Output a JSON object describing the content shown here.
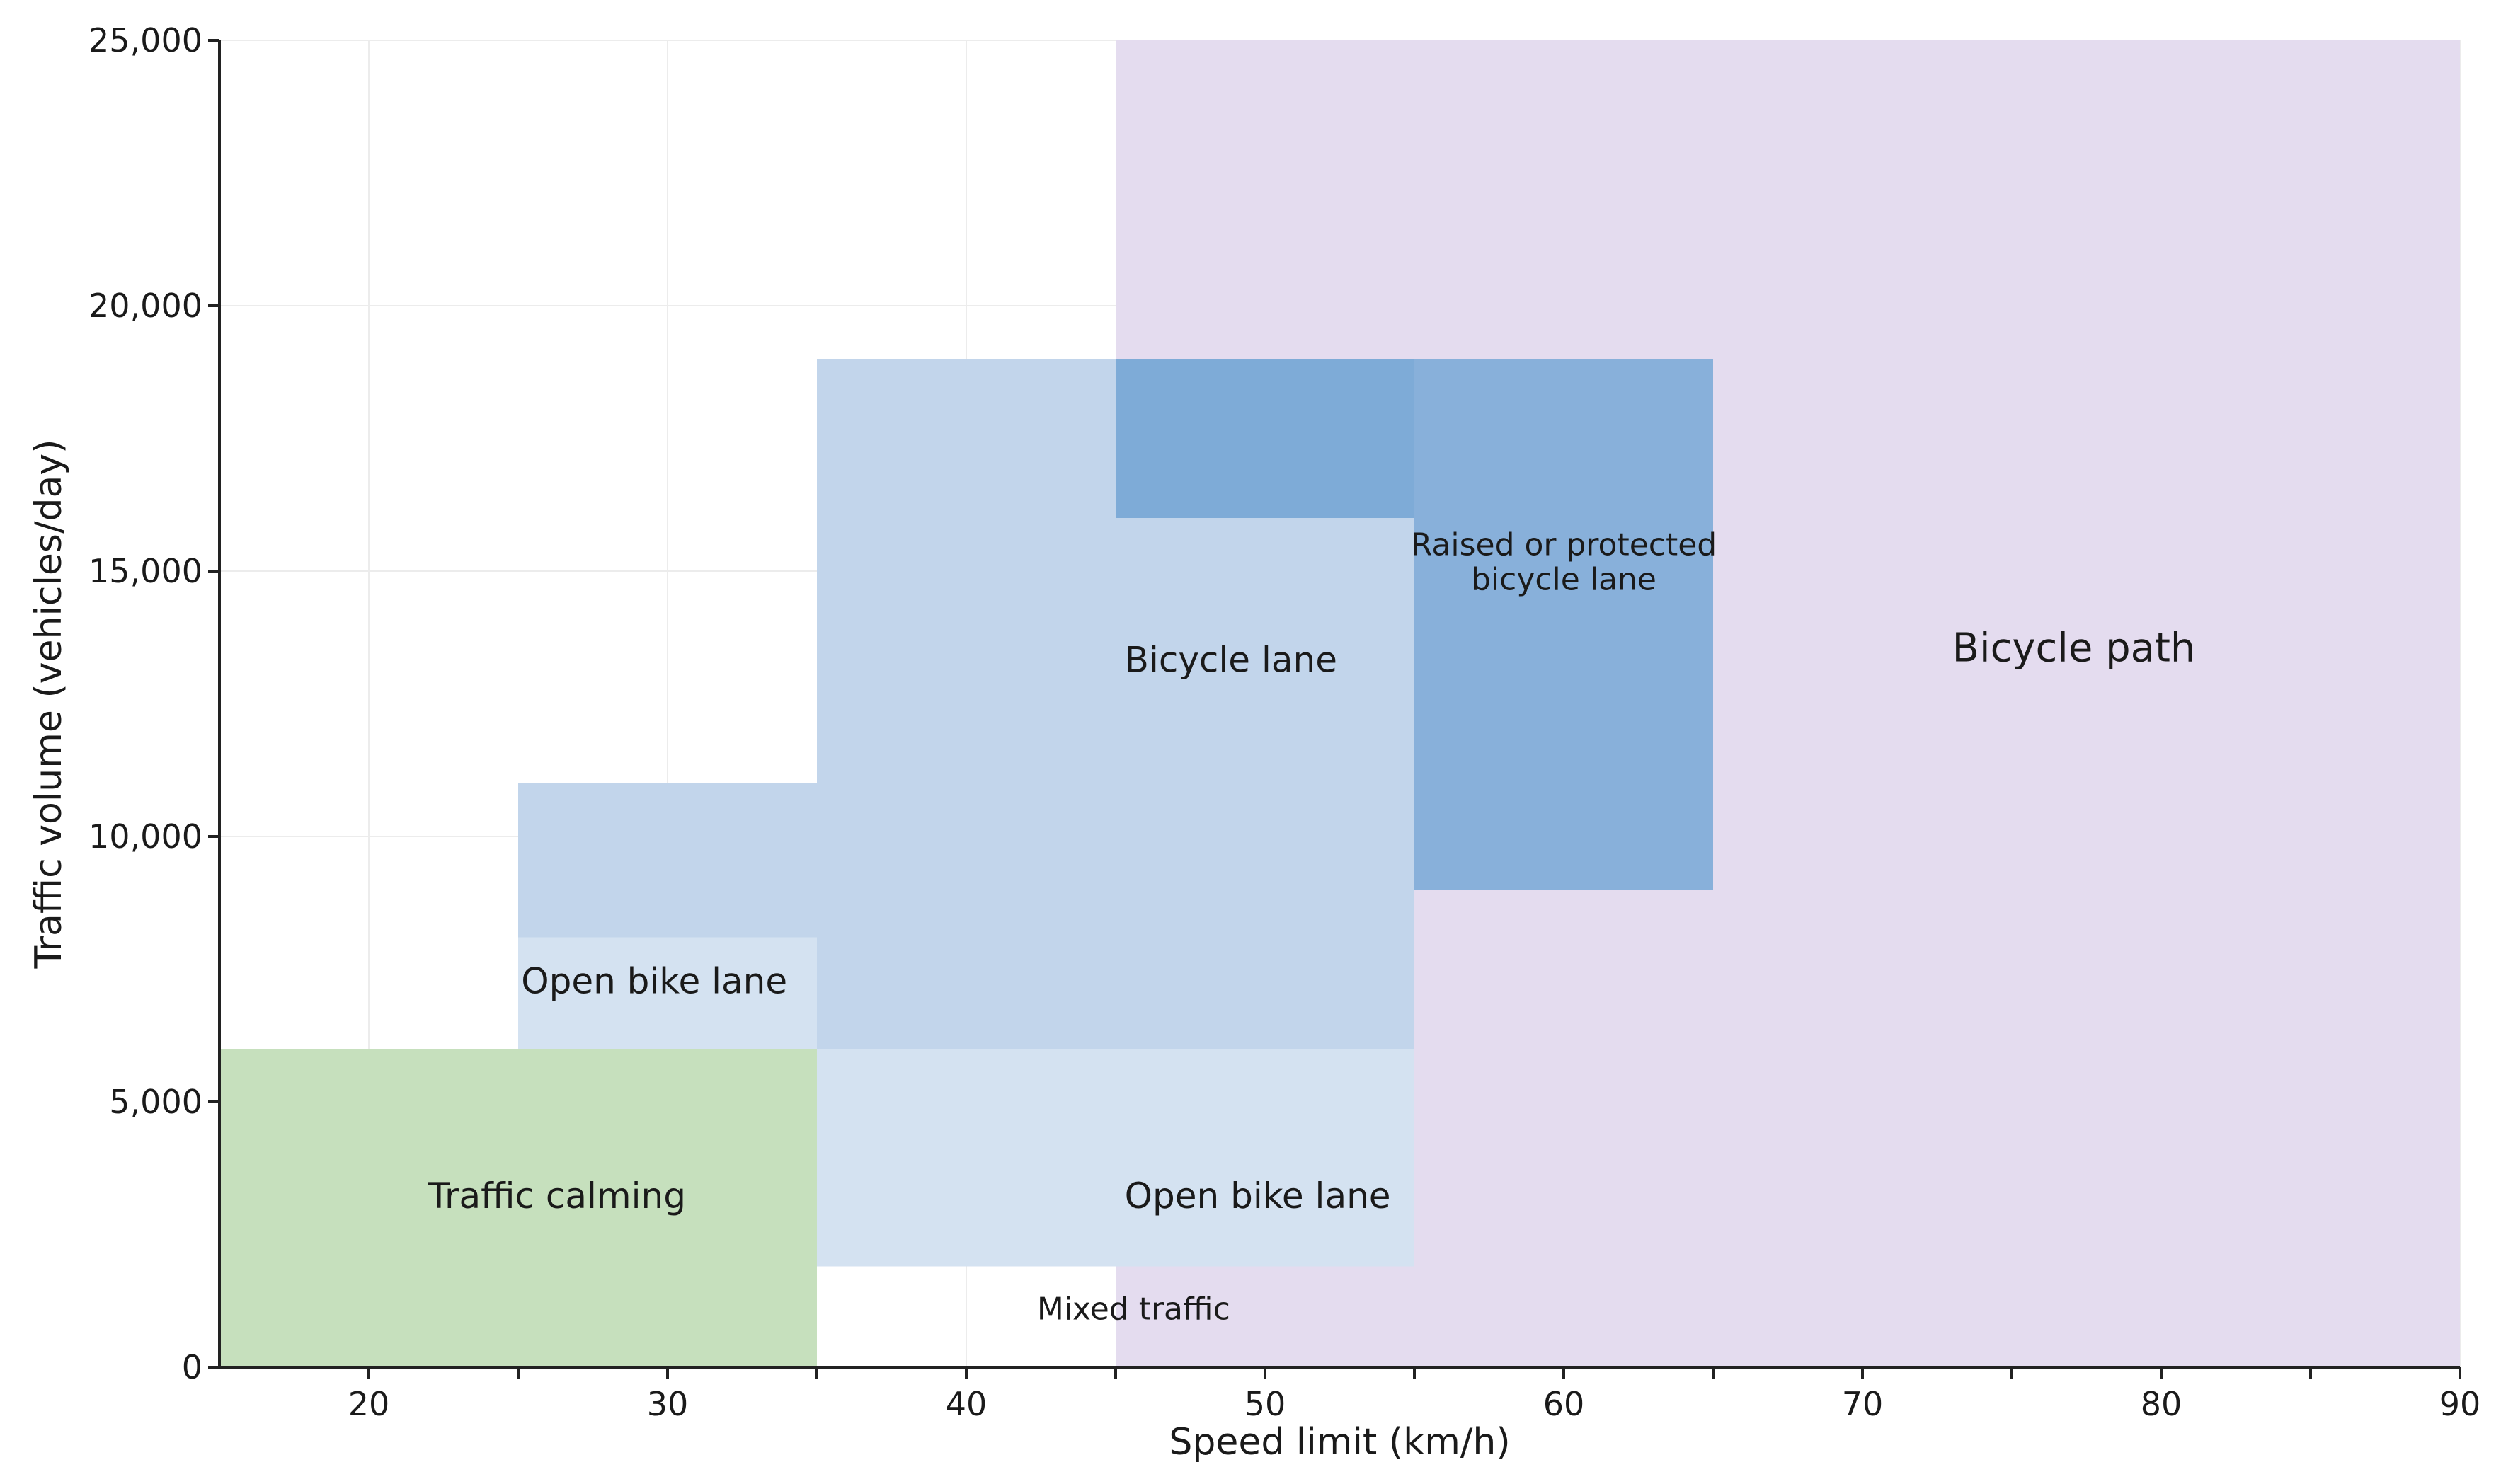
{
  "chart_data": {
    "type": "area",
    "title": "",
    "xlabel": "Speed limit (km/h)",
    "ylabel": "Traffic volume (vehicles/day)",
    "xlim": [
      15,
      90
    ],
    "ylim": [
      0,
      25000
    ],
    "x_major_ticks": [
      20,
      30,
      40,
      50,
      60,
      70,
      80,
      90
    ],
    "x_tick_labels": [
      "20",
      "30",
      "40",
      "50",
      "60",
      "70",
      "80",
      "90"
    ],
    "x_minor_ticks": [
      25,
      35,
      45,
      55,
      65,
      75,
      85
    ],
    "y_ticks": [
      0,
      5000,
      10000,
      15000,
      20000,
      25000
    ],
    "y_tick_labels": [
      "0",
      "5,000",
      "10,000",
      "15,000",
      "20,000",
      "25,000"
    ],
    "grid": true,
    "regions": [
      {
        "name": "Bicycle path",
        "x": [
          45,
          90
        ],
        "y": [
          0,
          25000
        ],
        "color": "#e4dcef"
      },
      {
        "name": "Bicycle path",
        "x": [
          65,
          90
        ],
        "y": [
          0,
          25000
        ],
        "color": "#e4dcef"
      },
      {
        "name": "Bicycle lane",
        "x": [
          35,
          55
        ],
        "y": [
          6000,
          19000
        ],
        "color": "#c2d5eb"
      },
      {
        "name": "Bicycle lane",
        "x": [
          25,
          35
        ],
        "y": [
          8100,
          11000
        ],
        "color": "#c2d5eb"
      },
      {
        "name": "Open bike lane",
        "x": [
          25,
          35
        ],
        "y": [
          6000,
          8100
        ],
        "color": "#d4e2f1"
      },
      {
        "name": "Open bike lane",
        "x": [
          35,
          55
        ],
        "y": [
          1900,
          6000
        ],
        "color": "#d4e2f1"
      },
      {
        "name": "Traffic calming",
        "x": [
          15,
          35
        ],
        "y": [
          0,
          6000
        ],
        "color": "#c6e0bd"
      },
      {
        "name": "Raised or protected bicycle lane",
        "x": [
          45,
          55
        ],
        "y": [
          16000,
          19000
        ],
        "color": "#7eabd7"
      },
      {
        "name": "Raised or protected bicycle lane",
        "x": [
          55,
          65
        ],
        "y": [
          9000,
          19000
        ],
        "color": "#88b0da"
      }
    ],
    "labels": [
      {
        "text": "Bicycle path",
        "x": 73,
        "y": 13300,
        "anchor": "start",
        "size": "large"
      },
      {
        "text": "Raised or protected",
        "x": 60,
        "y": 15300,
        "anchor": "middle",
        "size": "small"
      },
      {
        "text": "bicycle lane",
        "x": 60,
        "y": 14650,
        "anchor": "middle",
        "size": "small"
      },
      {
        "text": "Bicycle lane",
        "x": 45.3,
        "y": 13100,
        "anchor": "start",
        "size": "normal"
      },
      {
        "text": "Open bike lane",
        "x": 25.1,
        "y": 7050,
        "anchor": "start",
        "size": "normal"
      },
      {
        "text": "Open bike lane",
        "x": 45.3,
        "y": 3000,
        "anchor": "start",
        "size": "normal"
      },
      {
        "text": "Traffic calming",
        "x": 26.3,
        "y": 3000,
        "anchor": "middle",
        "size": "normal"
      },
      {
        "text": "Mixed traffic",
        "x": 45.6,
        "y": 900,
        "anchor": "middle",
        "size": "small"
      }
    ]
  }
}
